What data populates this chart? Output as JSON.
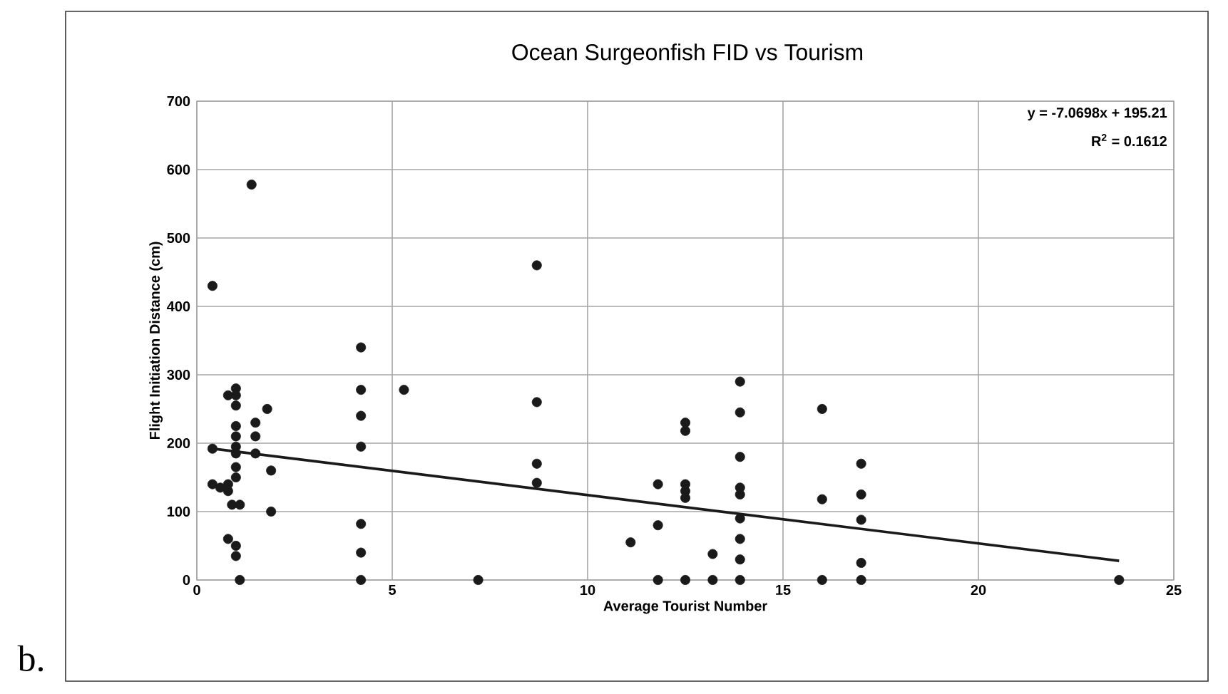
{
  "chart_data": {
    "type": "scatter",
    "title": "Ocean Surgeonfish FID vs Tourism",
    "xlabel": "Average Tourist Number",
    "ylabel": "Flight Initiation Distance (cm)",
    "annotations": [
      "y = -7.0698x + 195.21",
      "R$^{2}$ = 0.1612",
      "b."
    ],
    "xlim": [
      0,
      25
    ],
    "xticks": [
      0,
      5,
      10,
      15,
      20,
      25
    ],
    "ylim": [
      0,
      700
    ],
    "yticks": [
      0,
      100,
      200,
      300,
      400,
      500,
      600,
      700
    ],
    "grid": true,
    "marker": "circle",
    "series": [
      {
        "color": "#1a1a1a",
        "x": [
          0.4,
          1.4,
          0.4,
          0.4,
          0.6,
          0.8,
          0.8,
          0.8,
          1.0,
          1.0,
          1.0,
          1.0,
          1.0,
          1.0,
          1.0,
          1.0,
          1.0,
          0.9,
          1.1,
          0.8,
          1.0,
          1.0,
          1.1,
          1.5,
          1.5,
          1.5,
          1.8,
          1.9,
          1.9,
          4.2,
          4.2,
          4.2,
          4.2,
          4.2,
          4.2,
          4.2,
          5.3,
          7.2,
          8.7,
          8.7,
          8.7,
          8.7,
          11.1,
          11.8,
          11.8,
          11.8,
          12.5,
          12.5,
          12.5,
          12.5,
          12.5,
          12.5,
          13.2,
          13.2,
          13.9,
          13.9,
          13.9,
          13.9,
          13.9,
          13.9,
          13.9,
          13.9,
          13.9,
          16.0,
          16.0,
          16.0,
          17.0,
          17.0,
          17.0,
          17.0,
          17.0,
          23.6
        ],
        "values": [
          430,
          578,
          192,
          140,
          135,
          140,
          130,
          270,
          280,
          270,
          255,
          225,
          210,
          195,
          185,
          165,
          150,
          110,
          110,
          60,
          50,
          35,
          0,
          230,
          210,
          185,
          250,
          160,
          100,
          340,
          278,
          240,
          195,
          82,
          40,
          0,
          278,
          0,
          460,
          260,
          170,
          142,
          55,
          140,
          80,
          0,
          230,
          218,
          140,
          130,
          120,
          0,
          38,
          0,
          290,
          245,
          180,
          135,
          125,
          90,
          60,
          30,
          0,
          250,
          118,
          0,
          170,
          125,
          88,
          25,
          0,
          0
        ]
      },
      {
        "type": "line",
        "marker": "none",
        "color": "#1a1a1a",
        "x": [
          0.4,
          23.6
        ],
        "values": [
          192,
          28
        ]
      }
    ]
  }
}
